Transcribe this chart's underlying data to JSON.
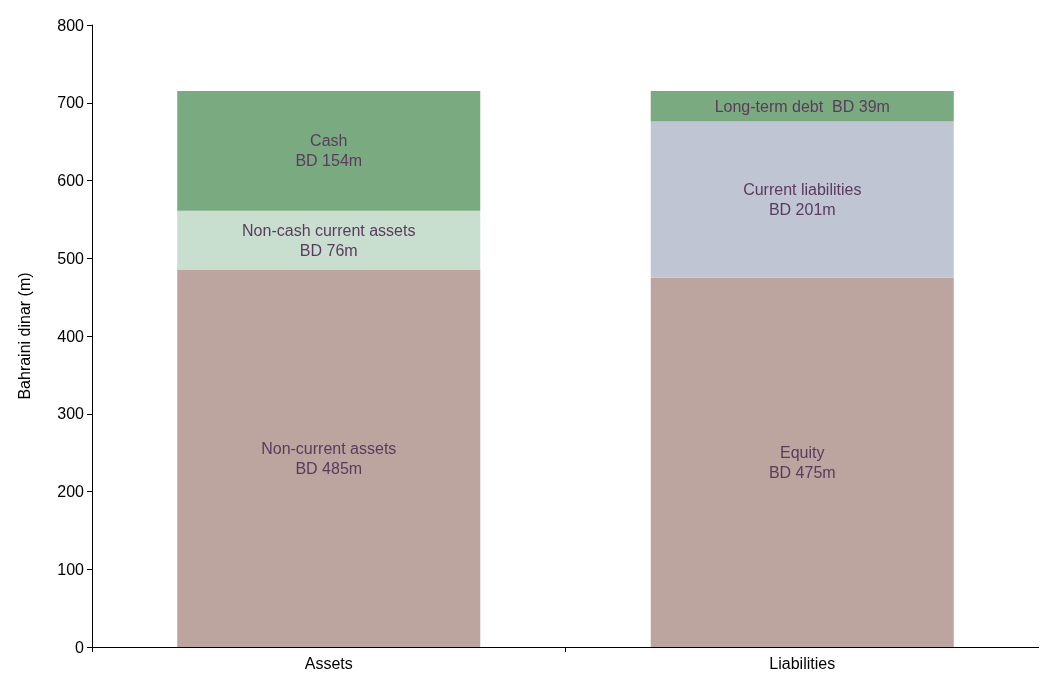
{
  "chart_data": {
    "type": "bar",
    "stacked": true,
    "ylabel": "Bahraini dinar (m)",
    "categories": [
      "Assets",
      "Liabilities"
    ],
    "ylim": [
      0,
      800
    ],
    "yticks": [
      0,
      100,
      200,
      300,
      400,
      500,
      600,
      700,
      800
    ],
    "grid": false,
    "legend": false,
    "series": [
      {
        "name": "Non-current assets",
        "color": "#bba59e",
        "values": [
          485,
          null
        ],
        "value_labels": [
          "BD 485m",
          null
        ]
      },
      {
        "name": "Non-cash current assets",
        "color": "#c8dfd0",
        "values": [
          76,
          null
        ],
        "value_labels": [
          "BD 76m",
          null
        ]
      },
      {
        "name": "Cash",
        "color": "#7aab80",
        "values": [
          154,
          null
        ],
        "value_labels": [
          "BD 154m",
          null
        ]
      },
      {
        "name": "Equity",
        "color": "#bba59e",
        "values": [
          null,
          475
        ],
        "value_labels": [
          null,
          "BD 475m"
        ]
      },
      {
        "name": "Current liabilities",
        "color": "#bfc5d2",
        "values": [
          null,
          201
        ],
        "value_labels": [
          null,
          "BD 201m"
        ]
      },
      {
        "name": "Long-term debt",
        "color": "#7aab80",
        "values": [
          null,
          39
        ],
        "value_labels": [
          null,
          "BD 39m"
        ]
      }
    ]
  }
}
